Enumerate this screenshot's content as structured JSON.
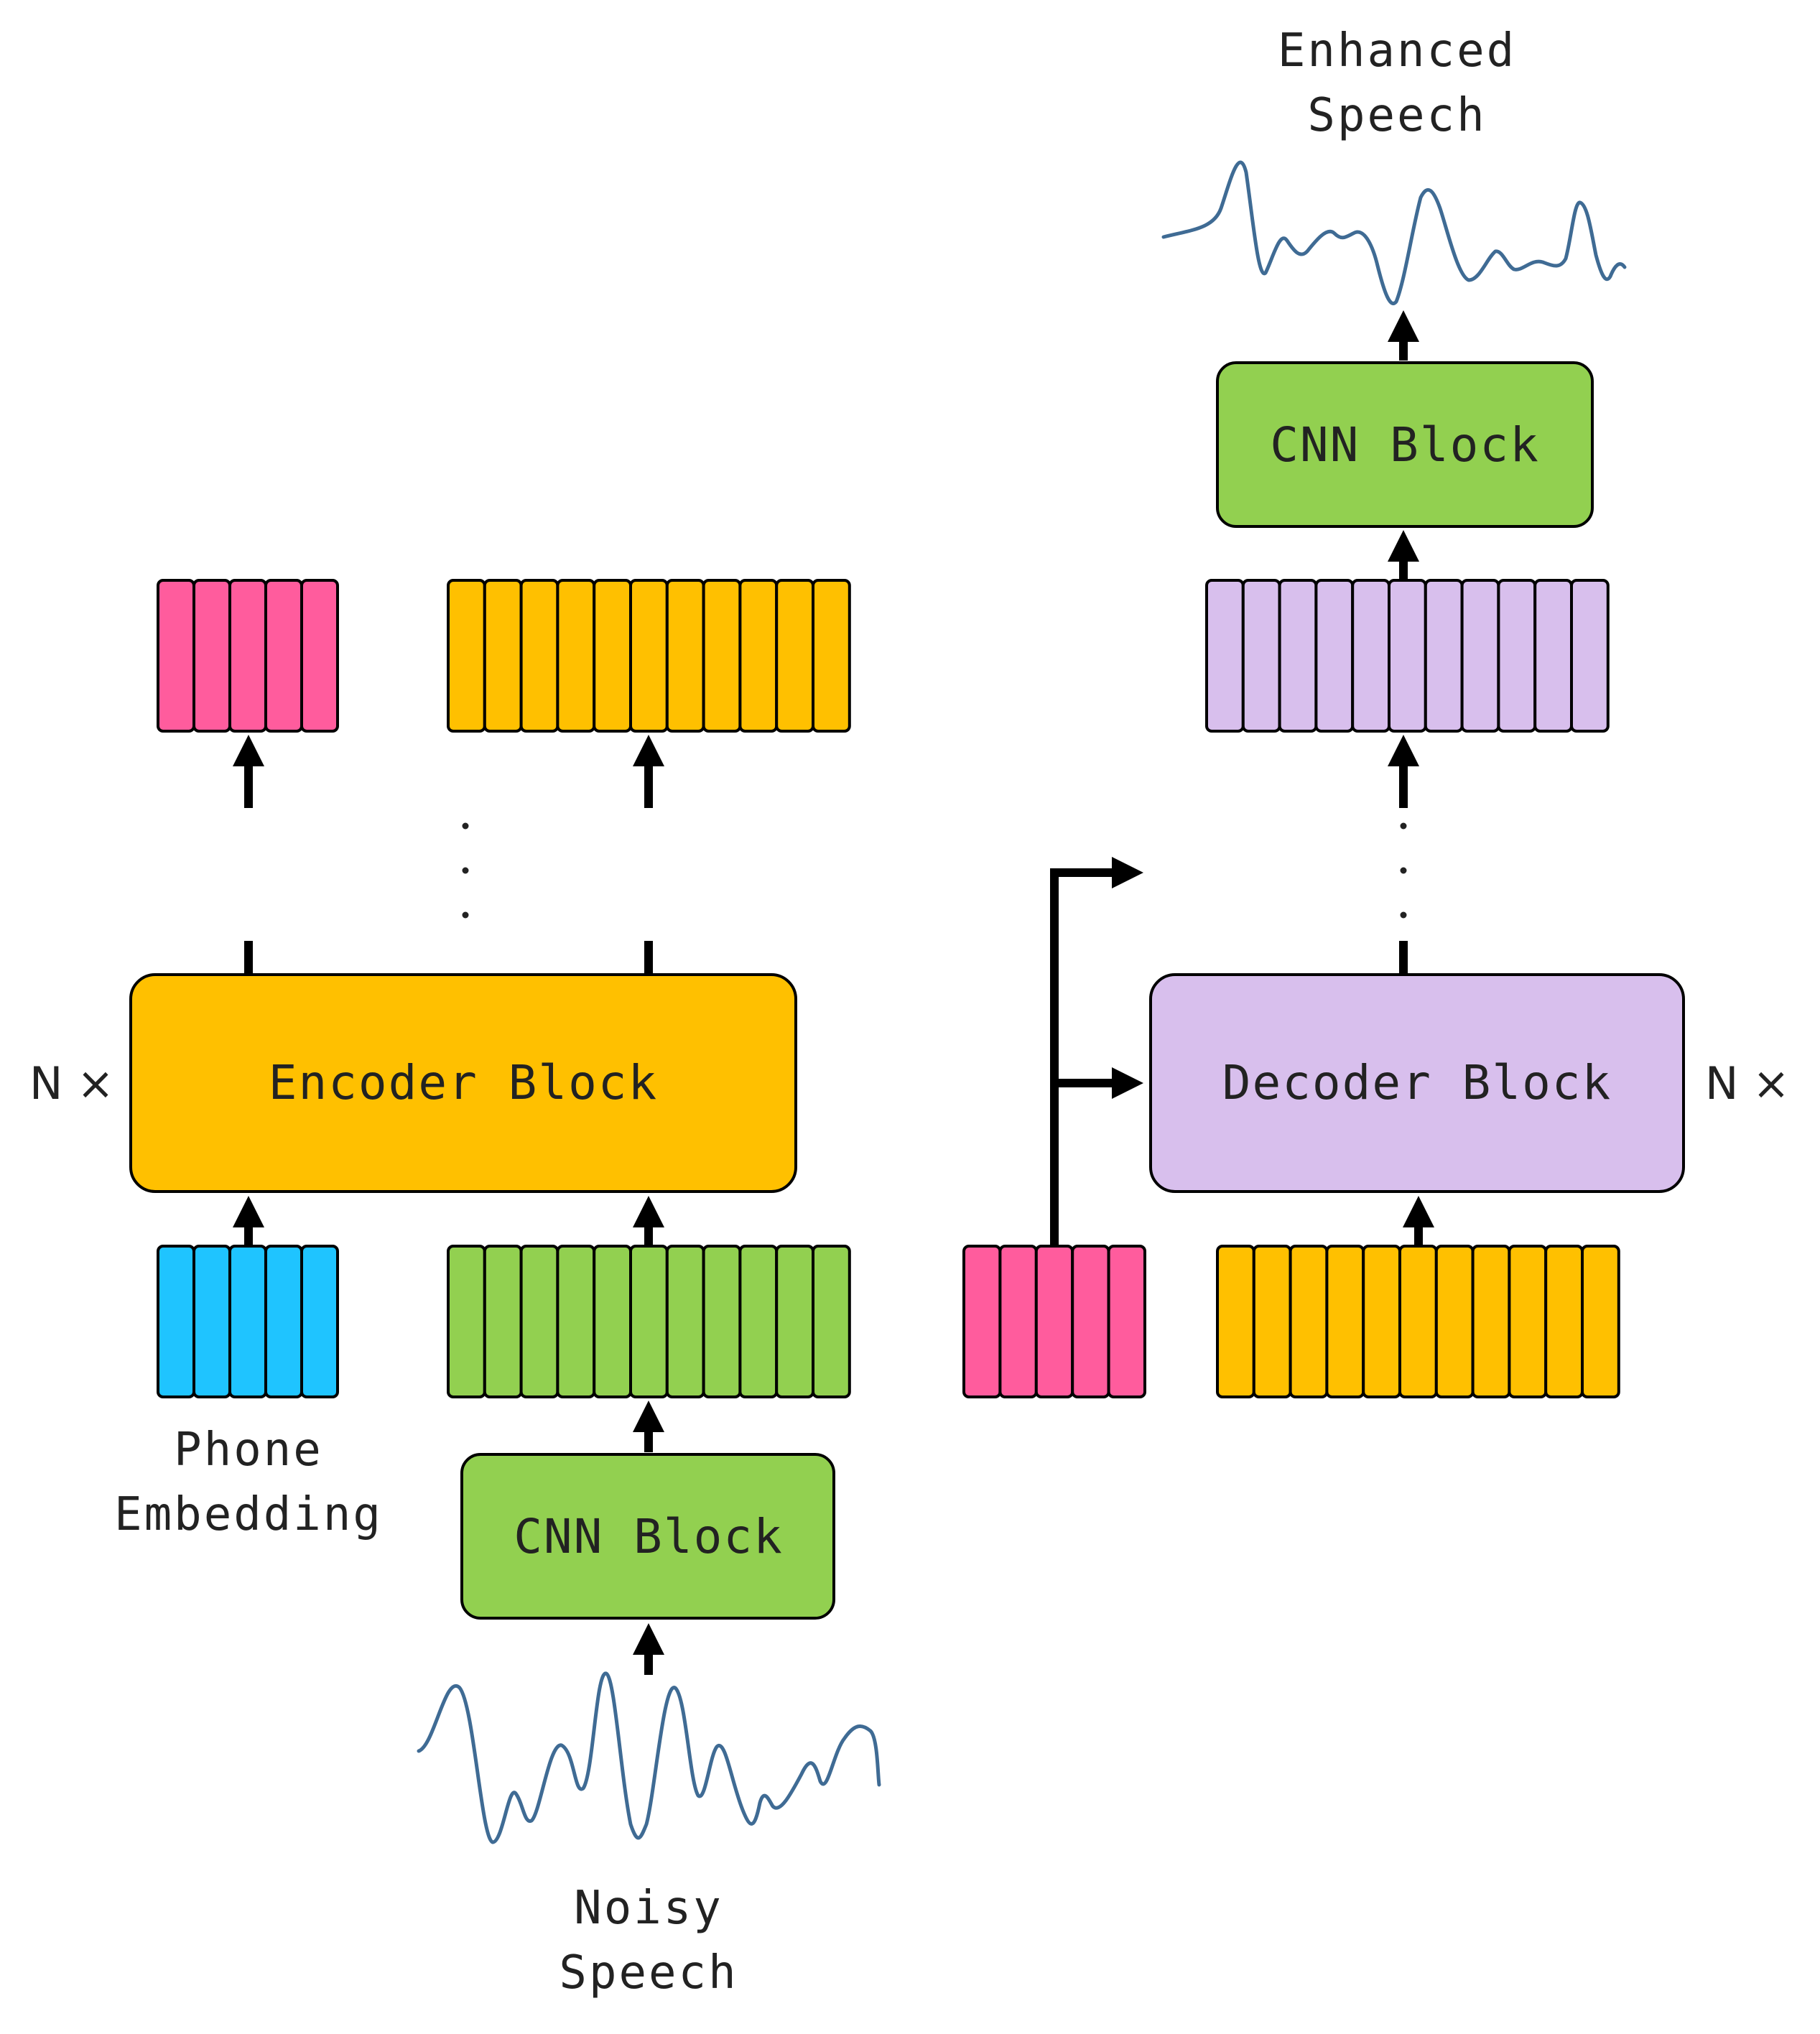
{
  "labels": {
    "enhanced_speech_line1": "Enhanced",
    "enhanced_speech_line2": "Speech",
    "noisy_speech_line1": "Noisy",
    "noisy_speech_line2": "Speech",
    "phone_embedding_line1": "Phone",
    "phone_embedding_line2": "Embedding",
    "encoder_block": "Encoder Block",
    "decoder_block": "Decoder Block",
    "cnn_block_top": "CNN Block",
    "cnn_block_bottom": "CNN Block",
    "nx_left": "N ×",
    "nx_right": "N ×"
  },
  "colors": {
    "pink": "#ff5c9d",
    "orange": "#ffc000",
    "blue": "#1fc4ff",
    "green": "#92d050",
    "lavender": "#d8bfed",
    "wave": "#3f6b94",
    "arrow": "#000000"
  }
}
